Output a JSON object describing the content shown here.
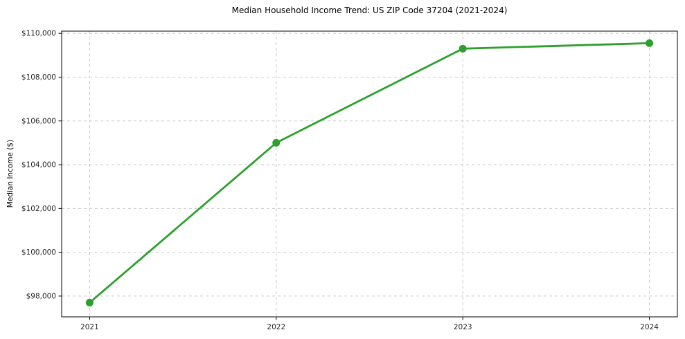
{
  "chart_data": {
    "type": "line",
    "title": "Median Household Income Trend: US ZIP Code 37204 (2021-2024)",
    "xlabel": "",
    "ylabel": "Median Income ($)",
    "series": [
      {
        "name": "Median Household Income",
        "x": [
          2021,
          2022,
          2023,
          2024
        ],
        "values": [
          97700,
          105000,
          109300,
          109550
        ]
      }
    ],
    "xticks": [
      2021,
      2022,
      2023,
      2024
    ],
    "xtick_labels": [
      "2021",
      "2022",
      "2023",
      "2024"
    ],
    "yticks": [
      98000,
      100000,
      102000,
      104000,
      106000,
      108000,
      110000
    ],
    "ytick_labels": [
      "$98,000",
      "$100,000",
      "$102,000",
      "$104,000",
      "$106,000",
      "$108,000",
      "$110,000"
    ],
    "xlim": [
      2020.85,
      2024.15
    ],
    "ylim": [
      97050,
      110100
    ],
    "grid": true,
    "grid_style": "dashed",
    "legend": false,
    "line_color": "#2ca02c",
    "marker": "circle",
    "marker_color": "#2ca02c",
    "background_color": "#ffffff"
  }
}
